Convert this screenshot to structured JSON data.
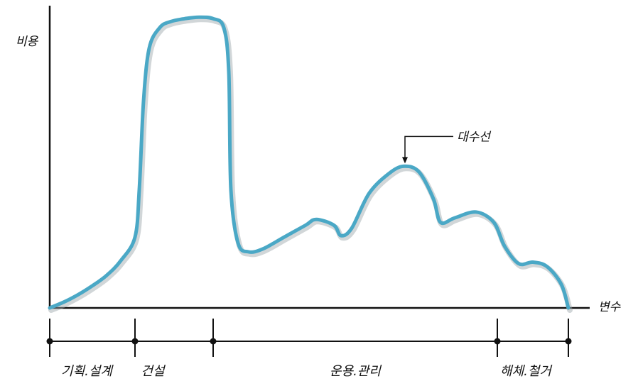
{
  "chart_data": {
    "type": "line",
    "title": "",
    "ylabel": "비용",
    "xlabel": "변수",
    "grid": false,
    "legend": "none",
    "colors": {
      "curve": "#4aa8c6",
      "axis": "#111111"
    },
    "series": [
      {
        "name": "",
        "points": [
          [
            0,
            0
          ],
          [
            2,
            2
          ],
          [
            4,
            4.5
          ],
          [
            6,
            7.5
          ],
          [
            8,
            11
          ],
          [
            10,
            16
          ],
          [
            12,
            24
          ],
          [
            12.6,
            40
          ],
          [
            13.2,
            70
          ],
          [
            14,
            88
          ],
          [
            15.5,
            95
          ],
          [
            17,
            97
          ],
          [
            19,
            98
          ],
          [
            21,
            98.5
          ],
          [
            23,
            98
          ],
          [
            24.5,
            95
          ],
          [
            25.2,
            80
          ],
          [
            25.5,
            40
          ],
          [
            26.5,
            22
          ],
          [
            28,
            19
          ],
          [
            30,
            20
          ],
          [
            33,
            24
          ],
          [
            36,
            28
          ],
          [
            37.5,
            30
          ],
          [
            40,
            28
          ],
          [
            41,
            24.5
          ],
          [
            42.5,
            27
          ],
          [
            45,
            39
          ],
          [
            48,
            46
          ],
          [
            50,
            48
          ],
          [
            52,
            46
          ],
          [
            54,
            37
          ],
          [
            55,
            29
          ],
          [
            57,
            30.5
          ],
          [
            60,
            32.5
          ],
          [
            62.5,
            29
          ],
          [
            64,
            21
          ],
          [
            66,
            15
          ],
          [
            68,
            15.5
          ],
          [
            70,
            14
          ],
          [
            72,
            8
          ],
          [
            73,
            0
          ]
        ]
      }
    ],
    "xlim": [
      0,
      76
    ],
    "ylim": [
      0,
      100
    ],
    "phase_boundaries": [
      0,
      12,
      23,
      63,
      73
    ],
    "phases": [
      "기획.설계",
      "건설",
      "운용.관리",
      "해체.철거"
    ],
    "annotations": [
      {
        "text": "대수선",
        "x": 50,
        "y": 48
      }
    ]
  }
}
